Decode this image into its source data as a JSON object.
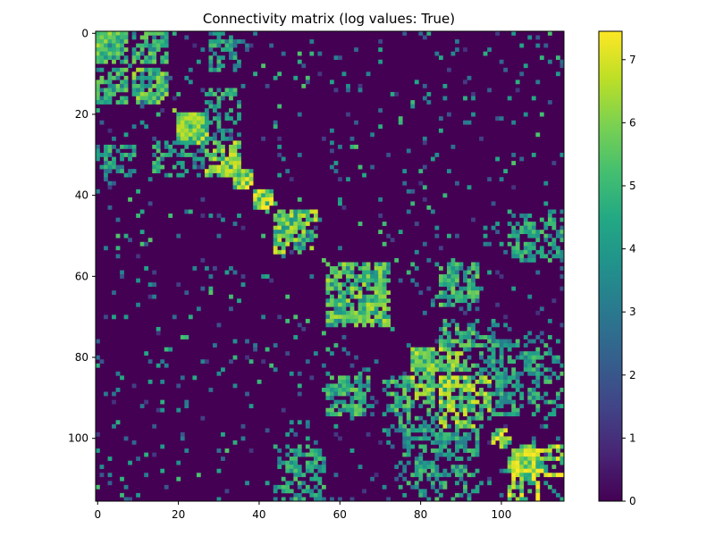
{
  "chart_data": {
    "type": "heatmap",
    "title": "Connectivity matrix (log values: True)",
    "matrix_size": 116,
    "xlim": [
      0,
      116
    ],
    "ylim": [
      116,
      0
    ],
    "x_ticks": [
      0,
      20,
      40,
      60,
      80,
      100
    ],
    "y_ticks": [
      0,
      20,
      40,
      60,
      80,
      100
    ],
    "colorbar": {
      "range": [
        0,
        7.45
      ],
      "ticks": [
        0,
        1,
        2,
        3,
        4,
        5,
        6,
        7
      ],
      "colormap": "viridis"
    },
    "blocks": [
      {
        "rows": [
          0,
          8
        ],
        "cols": [
          0,
          8
        ],
        "value": 6.0,
        "density": 0.6
      },
      {
        "rows": [
          0,
          8
        ],
        "cols": [
          9,
          18
        ],
        "value": 5.5,
        "density": 0.55
      },
      {
        "rows": [
          9,
          17
        ],
        "cols": [
          0,
          8
        ],
        "value": 5.5,
        "density": 0.55
      },
      {
        "rows": [
          9,
          17
        ],
        "cols": [
          9,
          18
        ],
        "value": 6.0,
        "density": 0.6
      },
      {
        "rows": [
          0,
          4
        ],
        "cols": [
          28,
          36
        ],
        "value": 5.0,
        "density": 0.4
      },
      {
        "rows": [
          14,
          17
        ],
        "cols": [
          28,
          34
        ],
        "value": 5.0,
        "density": 0.35
      },
      {
        "rows": [
          20,
          27
        ],
        "cols": [
          20,
          28
        ],
        "value": 6.5,
        "density": 0.65
      },
      {
        "rows": [
          27,
          35
        ],
        "cols": [
          28,
          36
        ],
        "value": 6.5,
        "density": 0.65
      },
      {
        "rows": [
          27,
          36
        ],
        "cols": [
          0,
          10
        ],
        "value": 5.0,
        "density": 0.4
      },
      {
        "rows": [
          27,
          36
        ],
        "cols": [
          14,
          27
        ],
        "value": 5.0,
        "density": 0.4
      },
      {
        "rows": [
          34,
          38
        ],
        "cols": [
          34,
          39
        ],
        "value": 7.0,
        "density": 0.8
      },
      {
        "rows": [
          39,
          43
        ],
        "cols": [
          39,
          44
        ],
        "value": 7.0,
        "density": 0.8
      },
      {
        "rows": [
          44,
          52
        ],
        "cols": [
          44,
          55
        ],
        "value": 6.5,
        "density": 0.65
      },
      {
        "rows": [
          57,
          73
        ],
        "cols": [
          57,
          73
        ],
        "value": 6.0,
        "density": 0.55
      },
      {
        "rows": [
          57,
          66
        ],
        "cols": [
          85,
          95
        ],
        "value": 5.5,
        "density": 0.45
      },
      {
        "rows": [
          62,
          67
        ],
        "cols": [
          85,
          95
        ],
        "value": 5.0,
        "density": 0.4
      },
      {
        "rows": [
          71,
          76
        ],
        "cols": [
          85,
          100
        ],
        "value": 5.0,
        "density": 0.35
      },
      {
        "rows": [
          78,
          84
        ],
        "cols": [
          78,
          92
        ],
        "value": 6.5,
        "density": 0.6
      },
      {
        "rows": [
          85,
          95
        ],
        "cols": [
          57,
          68
        ],
        "value": 5.5,
        "density": 0.45
      },
      {
        "rows": [
          85,
          95
        ],
        "cols": [
          72,
          85
        ],
        "value": 5.5,
        "density": 0.45
      },
      {
        "rows": [
          85,
          94
        ],
        "cols": [
          85,
          98
        ],
        "value": 6.5,
        "density": 0.6
      },
      {
        "rows": [
          98,
          102
        ],
        "cols": [
          98,
          103
        ],
        "value": 7.0,
        "density": 0.8
      },
      {
        "rows": [
          102,
          110
        ],
        "cols": [
          103,
          116
        ],
        "value": 7.0,
        "density": 0.65
      },
      {
        "rows": [
          102,
          115
        ],
        "cols": [
          44,
          57
        ],
        "value": 5.0,
        "density": 0.3
      },
      {
        "rows": [
          44,
          57
        ],
        "cols": [
          103,
          116
        ],
        "value": 5.0,
        "density": 0.3
      },
      {
        "rows": [
          75,
          95
        ],
        "cols": [
          98,
          116
        ],
        "value": 5.0,
        "density": 0.3
      },
      {
        "rows": [
          95,
          110
        ],
        "cols": [
          75,
          95
        ],
        "value": 5.0,
        "density": 0.3
      }
    ]
  }
}
